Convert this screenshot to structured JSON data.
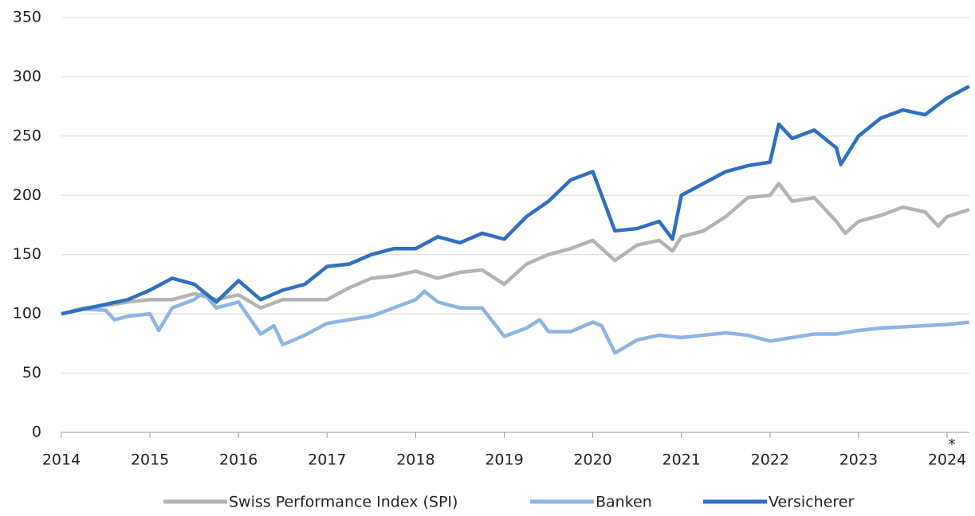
{
  "chart_data": {
    "type": "line",
    "xlim": [
      2014,
      2024.25
    ],
    "xticks": [
      2014,
      2015,
      2016,
      2017,
      2018,
      2019,
      2020,
      2021,
      2022,
      2023,
      2024
    ],
    "ylim": [
      0,
      350
    ],
    "yticks": [
      0,
      50,
      100,
      150,
      200,
      250,
      300,
      350
    ],
    "grid": true,
    "annotations": [
      "*"
    ],
    "series": [
      {
        "name": "Swiss Performance Index (SPI)",
        "color": "#b3b3b3",
        "x": [
          2014,
          2014.25,
          2014.5,
          2014.75,
          2015,
          2015.25,
          2015.5,
          2015.75,
          2016,
          2016.25,
          2016.5,
          2016.75,
          2017,
          2017.25,
          2017.5,
          2017.75,
          2018,
          2018.25,
          2018.5,
          2018.75,
          2019,
          2019.25,
          2019.5,
          2019.75,
          2020,
          2020.25,
          2020.5,
          2020.75,
          2020.9,
          2021,
          2021.25,
          2021.5,
          2021.75,
          2022,
          2022.1,
          2022.25,
          2022.5,
          2022.75,
          2022.85,
          2023,
          2023.25,
          2023.5,
          2023.75,
          2023.9,
          2024,
          2024.25
        ],
        "values": [
          100,
          105,
          107,
          110,
          112,
          112,
          117,
          112,
          116,
          105,
          112,
          112,
          112,
          122,
          130,
          132,
          136,
          130,
          135,
          137,
          125,
          142,
          150,
          155,
          162,
          145,
          158,
          162,
          153,
          165,
          170,
          182,
          198,
          200,
          210,
          195,
          198,
          178,
          168,
          178,
          183,
          190,
          186,
          174,
          182,
          188
        ]
      },
      {
        "name": "Banken",
        "color": "#8db4e2",
        "x": [
          2014,
          2014.25,
          2014.5,
          2014.6,
          2014.75,
          2015,
          2015.1,
          2015.25,
          2015.5,
          2015.6,
          2015.75,
          2016,
          2016.25,
          2016.4,
          2016.5,
          2016.75,
          2017,
          2017.25,
          2017.5,
          2017.75,
          2018,
          2018.1,
          2018.25,
          2018.5,
          2018.75,
          2019,
          2019.25,
          2019.4,
          2019.5,
          2019.75,
          2020,
          2020.1,
          2020.25,
          2020.5,
          2020.75,
          2021,
          2021.25,
          2021.5,
          2021.75,
          2022,
          2022.25,
          2022.5,
          2022.75,
          2023,
          2023.25,
          2023.5,
          2023.75,
          2024,
          2024.25
        ],
        "values": [
          100,
          104,
          103,
          95,
          98,
          100,
          86,
          105,
          112,
          118,
          105,
          110,
          83,
          90,
          74,
          82,
          92,
          95,
          98,
          105,
          112,
          119,
          110,
          105,
          105,
          81,
          88,
          95,
          85,
          85,
          93,
          90,
          67,
          78,
          82,
          80,
          82,
          84,
          82,
          77,
          80,
          83,
          83,
          86,
          88,
          89,
          90,
          91,
          93
        ]
      },
      {
        "name": "Versicherer",
        "color": "#2f6fc0",
        "x": [
          2014,
          2014.25,
          2014.5,
          2014.75,
          2015,
          2015.25,
          2015.5,
          2015.75,
          2016,
          2016.25,
          2016.5,
          2016.75,
          2017,
          2017.25,
          2017.5,
          2017.75,
          2018,
          2018.25,
          2018.5,
          2018.75,
          2019,
          2019.25,
          2019.5,
          2019.75,
          2020,
          2020.25,
          2020.5,
          2020.75,
          2020.9,
          2021,
          2021.25,
          2021.5,
          2021.75,
          2022,
          2022.1,
          2022.25,
          2022.5,
          2022.75,
          2022.8,
          2023,
          2023.25,
          2023.5,
          2023.75,
          2024,
          2024.25
        ],
        "values": [
          100,
          104,
          108,
          112,
          120,
          130,
          125,
          110,
          128,
          112,
          120,
          125,
          140,
          142,
          150,
          155,
          155,
          165,
          160,
          168,
          163,
          182,
          195,
          213,
          220,
          170,
          172,
          178,
          163,
          200,
          210,
          220,
          225,
          228,
          260,
          248,
          255,
          240,
          226,
          250,
          265,
          272,
          268,
          282,
          292
        ]
      }
    ]
  }
}
